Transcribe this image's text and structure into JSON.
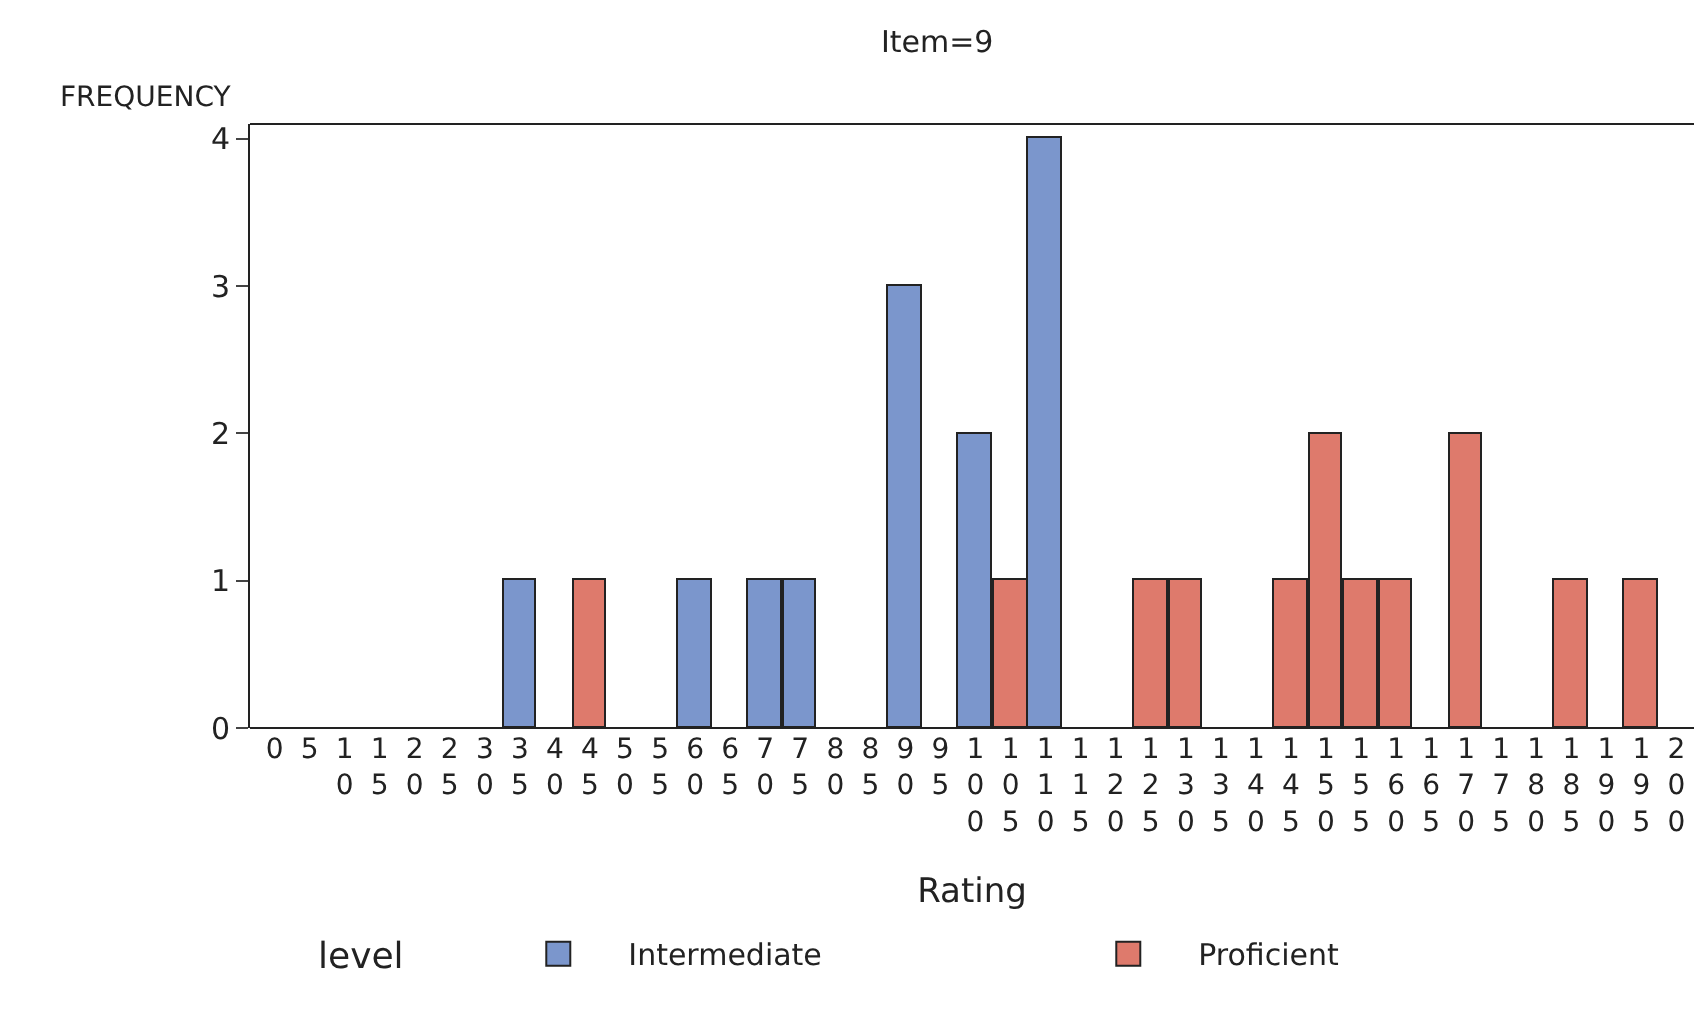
{
  "chart_data": {
    "type": "bar",
    "title": "Item=9",
    "xlabel": "Rating",
    "ylabel": "FREQUENCY",
    "legend_title": "level",
    "categories": [
      "0",
      "5",
      "10",
      "15",
      "20",
      "25",
      "30",
      "35",
      "40",
      "45",
      "50",
      "55",
      "60",
      "65",
      "70",
      "75",
      "80",
      "85",
      "90",
      "95",
      "100",
      "105",
      "110",
      "115",
      "120",
      "125",
      "130",
      "135",
      "140",
      "145",
      "150",
      "155",
      "160",
      "165",
      "170",
      "175",
      "180",
      "185",
      "190",
      "195",
      "200"
    ],
    "series": [
      {
        "name": "Intermediate",
        "color": "#7b96cc",
        "values": [
          null,
          null,
          null,
          null,
          null,
          null,
          null,
          1,
          null,
          null,
          null,
          null,
          1,
          null,
          1,
          1,
          null,
          null,
          3,
          null,
          2,
          null,
          4,
          null,
          null,
          null,
          null,
          null,
          null,
          null,
          null,
          null,
          null,
          null,
          null,
          null,
          null,
          null,
          null,
          null,
          null
        ]
      },
      {
        "name": "Proficient",
        "color": "#de7a6c",
        "values": [
          null,
          null,
          null,
          null,
          null,
          null,
          null,
          null,
          null,
          1,
          null,
          null,
          null,
          null,
          null,
          null,
          null,
          null,
          null,
          null,
          null,
          1,
          null,
          null,
          null,
          1,
          1,
          null,
          null,
          1,
          2,
          1,
          1,
          null,
          2,
          null,
          null,
          1,
          null,
          1,
          null
        ]
      }
    ],
    "ylim": [
      0,
      4.1
    ],
    "yticks": [
      0,
      1,
      2,
      3,
      4
    ],
    "legend": "bottom"
  }
}
